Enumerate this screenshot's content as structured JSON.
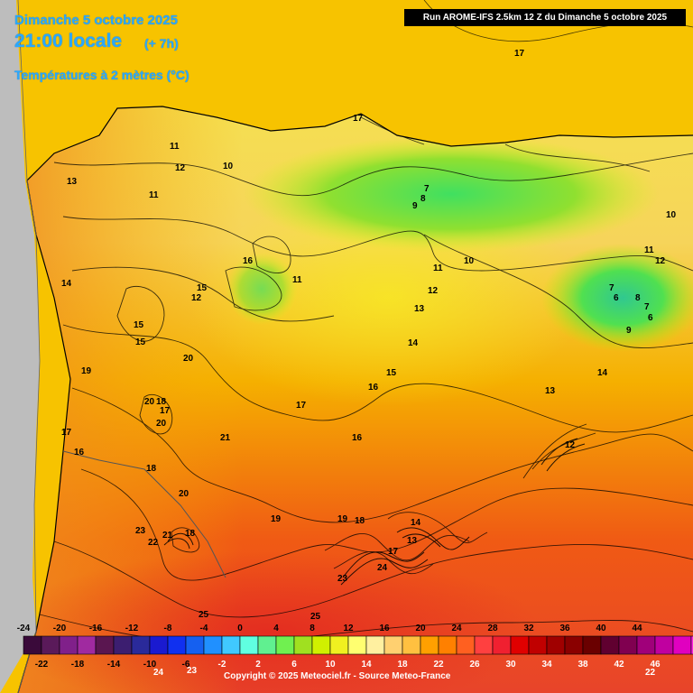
{
  "header": {
    "date": "Dimanche 5 octobre 2025",
    "time": "21:00 locale",
    "offset": "(+ 7h)",
    "parameter": "Températures à 2 mètres (°C)",
    "run": "Run AROME-IFS 2.5km 12 Z du Dimanche 5 octobre 2025"
  },
  "map": {
    "labels": [
      {
        "text": "17"
      },
      {
        "text": "17"
      },
      {
        "text": "11"
      },
      {
        "text": "12"
      },
      {
        "text": "10"
      },
      {
        "text": "13"
      },
      {
        "text": "11"
      },
      {
        "text": "7"
      },
      {
        "text": "8"
      },
      {
        "text": "9"
      },
      {
        "text": "10"
      },
      {
        "text": "11"
      },
      {
        "text": "12"
      },
      {
        "text": "16"
      },
      {
        "text": "14"
      },
      {
        "text": "15"
      },
      {
        "text": "11"
      },
      {
        "text": "12"
      },
      {
        "text": "11"
      },
      {
        "text": "10"
      },
      {
        "text": "12"
      },
      {
        "text": "13"
      },
      {
        "text": "7"
      },
      {
        "text": "6"
      },
      {
        "text": "8"
      },
      {
        "text": "7"
      },
      {
        "text": "6"
      },
      {
        "text": "9"
      },
      {
        "text": "14"
      },
      {
        "text": "15"
      },
      {
        "text": "15"
      },
      {
        "text": "19"
      },
      {
        "text": "20"
      },
      {
        "text": "16"
      },
      {
        "text": "20"
      },
      {
        "text": "18"
      },
      {
        "text": "17"
      },
      {
        "text": "20"
      },
      {
        "text": "17"
      },
      {
        "text": "16"
      },
      {
        "text": "21"
      },
      {
        "text": "17"
      },
      {
        "text": "16"
      },
      {
        "text": "15"
      },
      {
        "text": "14"
      },
      {
        "text": "13"
      },
      {
        "text": "12"
      },
      {
        "text": "18"
      },
      {
        "text": "20"
      },
      {
        "text": "19"
      },
      {
        "text": "19"
      },
      {
        "text": "18"
      },
      {
        "text": "23"
      },
      {
        "text": "22"
      },
      {
        "text": "21"
      },
      {
        "text": "18"
      },
      {
        "text": "14"
      },
      {
        "text": "13"
      },
      {
        "text": "17"
      },
      {
        "text": "24"
      },
      {
        "text": "23"
      },
      {
        "text": "25"
      },
      {
        "text": "25"
      },
      {
        "text": "24"
      },
      {
        "text": "23"
      },
      {
        "text": "22"
      }
    ]
  },
  "legend": {
    "upper_ticks": [
      "-24",
      "-20",
      "-16",
      "-12",
      "-8",
      "-4",
      "0",
      "4",
      "8",
      "12",
      "16",
      "20",
      "24",
      "28",
      "32",
      "36",
      "40",
      "44"
    ],
    "lower_ticks": [
      "-22",
      "-18",
      "-14",
      "-10",
      "-6",
      "-2",
      "2",
      "6",
      "10",
      "14",
      "18",
      "22",
      "26",
      "30",
      "34",
      "38",
      "42",
      "46"
    ],
    "colors": [
      "#3a0a3a",
      "#5a1a5a",
      "#80208a",
      "#a02aa0",
      "#5a1650",
      "#3c1e70",
      "#2a2a9a",
      "#1a1ad0",
      "#1030f0",
      "#1560f0",
      "#2090ff",
      "#40c8ff",
      "#60ffe0",
      "#60f090",
      "#70f050",
      "#a0e020",
      "#d0f000",
      "#f0f020",
      "#ffff70",
      "#fff0a0",
      "#ffd070",
      "#ffc040",
      "#ffa000",
      "#ff8000",
      "#ff6020",
      "#ff4040",
      "#f02030",
      "#e00000",
      "#c00000",
      "#a00000",
      "#8a0000",
      "#6a0000",
      "#600030",
      "#800050",
      "#a0007a",
      "#c000a0",
      "#e000c0",
      "#ff20e0",
      "#ff60f0",
      "#ff90f8"
    ],
    "copyright": "Copyright © 2025 Meteociel.fr - Source Meteo-France"
  }
}
